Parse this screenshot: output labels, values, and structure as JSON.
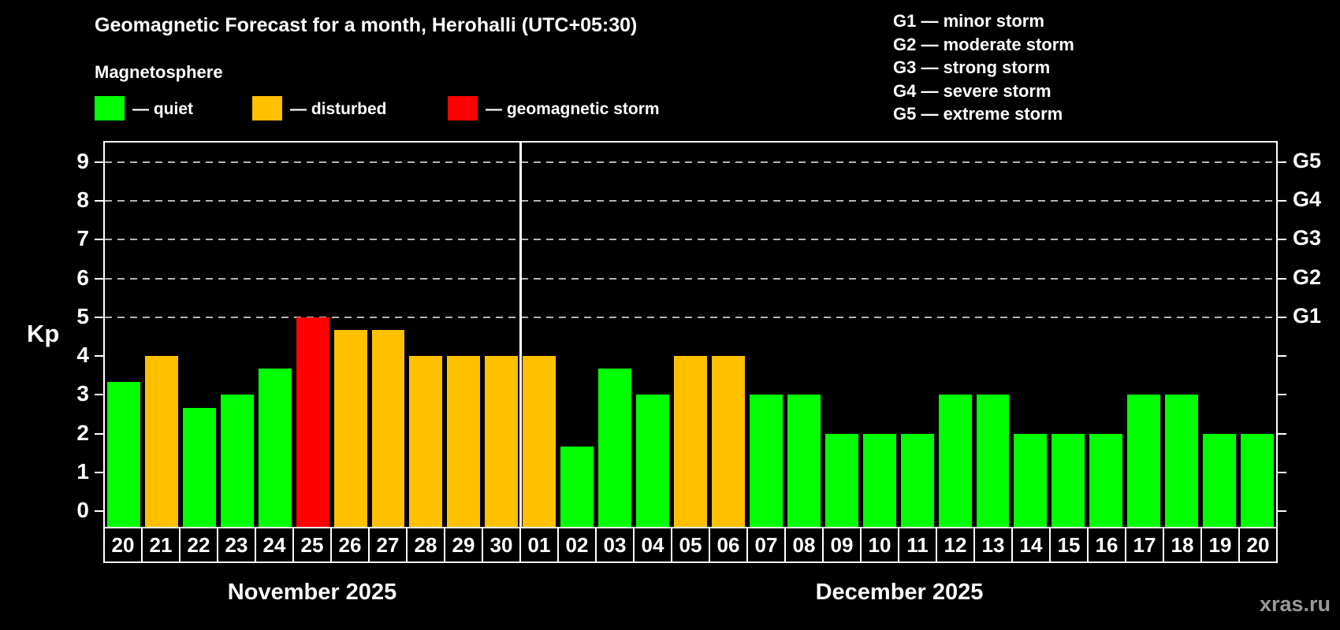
{
  "title": "Geomagnetic Forecast for a month, Herohalli (UTC+05:30)",
  "subtitle": "Magnetosphere",
  "legend": {
    "items": [
      {
        "label": "— quiet",
        "color": "#00ff00",
        "meaning": "quiet"
      },
      {
        "label": "— disturbed",
        "color": "#ffc000",
        "meaning": "disturbed"
      },
      {
        "label": "— geomagnetic storm",
        "color": "#ff0000",
        "meaning": "storm"
      }
    ]
  },
  "g_scale": [
    "G1 — minor storm",
    "G2 — moderate storm",
    "G3 — strong storm",
    "G4 — severe storm",
    "G5 — extreme storm"
  ],
  "months": [
    {
      "label": "November 2025"
    },
    {
      "label": "December 2025"
    }
  ],
  "watermark": "xras.ru",
  "chart_data": {
    "type": "bar",
    "title": "Geomagnetic Forecast for a month, Herohalli (UTC+05:30)",
    "ylabel": "Kp",
    "ylim": [
      0,
      9
    ],
    "yticks": [
      0,
      1,
      2,
      3,
      4,
      5,
      6,
      7,
      8,
      9
    ],
    "gridlines": [
      5,
      6,
      7,
      8,
      9
    ],
    "grid_style": "dashed",
    "legend_position": "top",
    "categories": [
      "Nov 20",
      "Nov 21",
      "Nov 22",
      "Nov 23",
      "Nov 24",
      "Nov 25",
      "Nov 26",
      "Nov 27",
      "Nov 28",
      "Nov 29",
      "Nov 30",
      "Dec 01",
      "Dec 02",
      "Dec 03",
      "Dec 04",
      "Dec 05",
      "Dec 06",
      "Dec 07",
      "Dec 08",
      "Dec 09",
      "Dec 10",
      "Dec 11",
      "Dec 12",
      "Dec 13",
      "Dec 14",
      "Dec 15",
      "Dec 16",
      "Dec 17",
      "Dec 18",
      "Dec 19",
      "Dec 20"
    ],
    "values": [
      3.33,
      4,
      2.67,
      3,
      3.67,
      5,
      4.67,
      4.67,
      4,
      4,
      4,
      4,
      1.67,
      3.67,
      3,
      4,
      4,
      3,
      3,
      2,
      2,
      2,
      3,
      3,
      2,
      2,
      2,
      3,
      3,
      2,
      2
    ],
    "month_boundary_index": 11,
    "bar_colors": {
      "quiet": "#00ff00",
      "disturbed": "#ffc000",
      "storm": "#ff0000"
    },
    "color_thresholds": {
      "disturbed_min_kp": 4,
      "storm_min_kp": 5
    },
    "g_levels": [
      {
        "label": "G1",
        "kp": 5
      },
      {
        "label": "G2",
        "kp": 6
      },
      {
        "label": "G3",
        "kp": 7
      },
      {
        "label": "G4",
        "kp": 8
      },
      {
        "label": "G5",
        "kp": 9
      }
    ]
  }
}
